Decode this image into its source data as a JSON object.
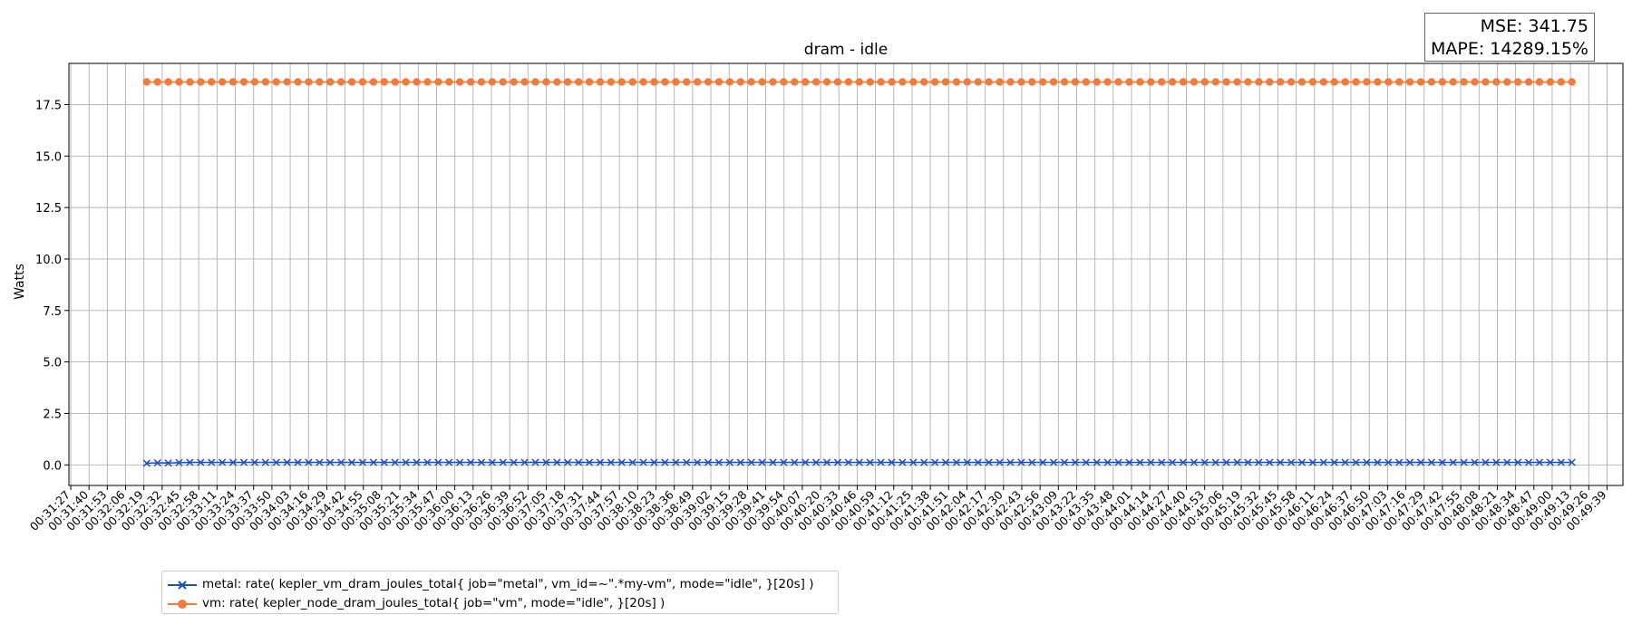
{
  "chart_data": {
    "type": "line",
    "title": "dram - idle",
    "xlabel": "",
    "ylabel": "Watts",
    "ylim": [
      -1.0,
      19.5
    ],
    "yticks": [
      0.0,
      2.5,
      5.0,
      7.5,
      10.0,
      12.5,
      15.0,
      17.5
    ],
    "ytick_labels": [
      "0.0",
      "2.5",
      "5.0",
      "7.5",
      "10.0",
      "12.5",
      "15.0",
      "17.5"
    ],
    "x_start": "00:31:27",
    "x_end": "00:49:49",
    "x_tick_step_seconds": 13,
    "x_tick_count": 85,
    "grid": true,
    "legend_position": "below-left",
    "series": [
      {
        "name": "metal: rate( kepler_vm_dram_joules_total{ job=\"metal\", vm_id=~\".*my-vm\", mode=\"idle\", }[20s] )",
        "color": "#1f4fbf",
        "marker": "x",
        "x_start": "00:32:21",
        "x_end": "00:49:14",
        "points": 133,
        "values": [
          0.08,
          0.1,
          0.09,
          0.11
        ],
        "steady_value": 0.12
      },
      {
        "name": "vm: rate( kepler_node_dram_joules_total{ job=\"vm\", mode=\"idle\", }[20s] )",
        "color": "#f5793a",
        "marker": "o",
        "x_start": "00:32:21",
        "x_end": "00:49:14",
        "points": 133,
        "steady_value": 18.6
      }
    ]
  },
  "metrics": {
    "mse": "MSE: 341.75",
    "mape": "MAPE: 14289.15%"
  }
}
